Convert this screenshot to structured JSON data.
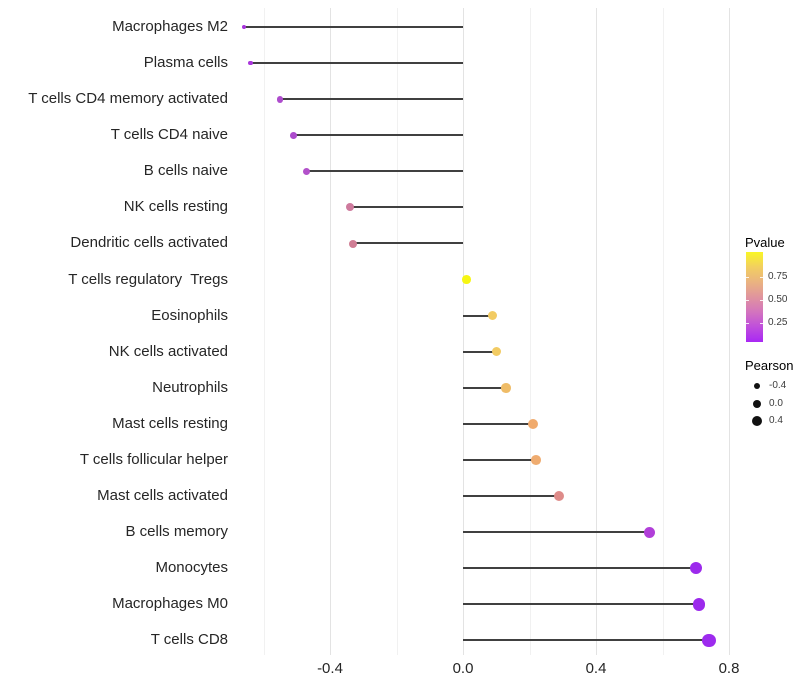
{
  "chart_data": {
    "type": "lollipop",
    "title": "",
    "xlabel": "",
    "ylabel": "",
    "grid": "vertical-only",
    "legend_position": "right",
    "xlim": [
      -0.68,
      0.824
    ],
    "x_ticks": [
      {
        "label": "-0.4",
        "value": -0.4
      },
      {
        "label": "0.0",
        "value": 0.0
      },
      {
        "label": "0.4",
        "value": 0.4
      },
      {
        "label": "0.8",
        "value": 0.8
      }
    ],
    "x_minor_gridlines": [
      -0.6,
      -0.2,
      0.2,
      0.6
    ],
    "baseline_value": 0.0,
    "stem_color": "#404040",
    "points": [
      {
        "label": "Macrophages M2",
        "pearson": -0.66,
        "color": "#A733DB",
        "radius": 2.0
      },
      {
        "label": "Plasma cells",
        "pearson": -0.64,
        "color": "#AA36DC",
        "radius": 2.4
      },
      {
        "label": "T cells CD4 memory activated",
        "pearson": -0.55,
        "color": "#AE4CCD",
        "radius": 3.4
      },
      {
        "label": "T cells CD4 naive",
        "pearson": -0.51,
        "color": "#AC4BCC",
        "radius": 3.4
      },
      {
        "label": "B cells naive",
        "pearson": -0.47,
        "color": "#B251CA",
        "radius": 3.7
      },
      {
        "label": "NK cells resting",
        "pearson": -0.34,
        "color": "#CE7A9D",
        "radius": 4.0
      },
      {
        "label": "Dendritic cells activated",
        "pearson": -0.33,
        "color": "#D07E95",
        "radius": 4.0
      },
      {
        "label": "T cells regulatory  Tregs",
        "pearson": 0.01,
        "color": "#F6F613",
        "radius": 4.3
      },
      {
        "label": "Eosinophils",
        "pearson": 0.09,
        "color": "#F2CB63",
        "radius": 4.6
      },
      {
        "label": "NK cells activated",
        "pearson": 0.1,
        "color": "#F2CB63",
        "radius": 4.7
      },
      {
        "label": "Neutrophils",
        "pearson": 0.13,
        "color": "#EFBC67",
        "radius": 4.8
      },
      {
        "label": "Mast cells resting",
        "pearson": 0.21,
        "color": "#F0AA6C",
        "radius": 5.0
      },
      {
        "label": "T cells follicular helper",
        "pearson": 0.22,
        "color": "#EFAC70",
        "radius": 4.9
      },
      {
        "label": "Mast cells activated",
        "pearson": 0.29,
        "color": "#DE8B89",
        "radius": 5.0
      },
      {
        "label": "B cells memory",
        "pearson": 0.56,
        "color": "#B13FD9",
        "radius": 5.6
      },
      {
        "label": "Monocytes",
        "pearson": 0.7,
        "color": "#9C2AEC",
        "radius": 6.2
      },
      {
        "label": "Macrophages M0",
        "pearson": 0.71,
        "color": "#9C2AEC",
        "radius": 6.4
      },
      {
        "label": "T cells CD8",
        "pearson": 0.74,
        "color": "#9D2BEE",
        "radius": 6.6
      }
    ],
    "legend": {
      "pvalue": {
        "title": "Pvalue",
        "ticks": [
          {
            "label": "0.75",
            "value": 0.75
          },
          {
            "label": "0.50",
            "value": 0.5
          },
          {
            "label": "0.25",
            "value": 0.25
          }
        ],
        "gradient_stops": [
          "#F9F626",
          "#F2CF60",
          "#EAB380",
          "#E0949E",
          "#D374BE",
          "#BF4EDC",
          "#A928F4"
        ]
      },
      "pearson": {
        "title": "Pearson",
        "dot_color": "#111111",
        "entries": [
          {
            "label": "-0.4",
            "value": -0.4,
            "radius": 3.4
          },
          {
            "label": "0.0",
            "value": 0.0,
            "radius": 4.4
          },
          {
            "label": "0.4",
            "value": 0.4,
            "radius": 5.4
          }
        ]
      }
    }
  }
}
